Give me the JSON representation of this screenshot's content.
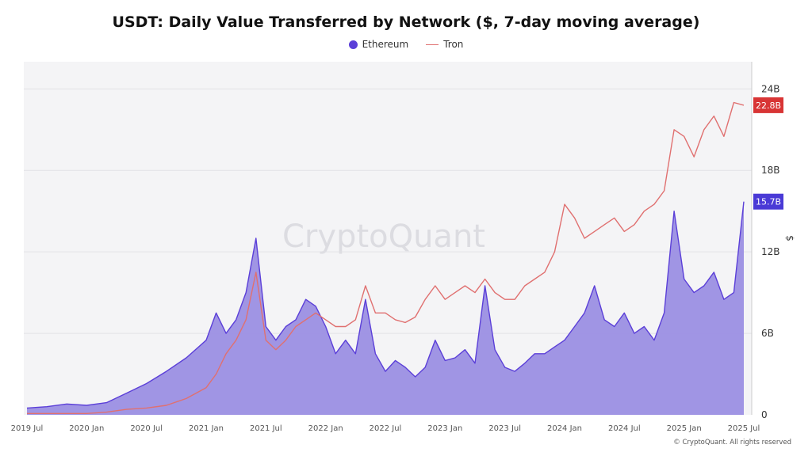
{
  "chart_data": {
    "type": "area",
    "title": "USDT: Daily Value Transferred by Network ($, 7-day moving average)",
    "xlabel": "",
    "ylabel": "$",
    "ylim": [
      0,
      26
    ],
    "y_unit": "B",
    "y_ticks": [
      "0",
      "6B",
      "12B",
      "18B",
      "24B"
    ],
    "y_tick_values": [
      0,
      6,
      12,
      18,
      24
    ],
    "x_tick_labels": [
      "2019 Jul",
      "2020 Jan",
      "2020 Jul",
      "2021 Jan",
      "2021 Jul",
      "2022 Jan",
      "2022 Jul",
      "2023 Jan",
      "2023 Jul",
      "2024 Jan",
      "2024 Jul",
      "2025 Jan",
      "2025 Jul"
    ],
    "x": [
      "2019-07",
      "2019-09",
      "2019-11",
      "2020-01",
      "2020-03",
      "2020-05",
      "2020-07",
      "2020-09",
      "2020-11",
      "2021-01",
      "2021-02",
      "2021-03",
      "2021-04",
      "2021-05",
      "2021-06",
      "2021-07",
      "2021-08",
      "2021-09",
      "2021-10",
      "2021-11",
      "2021-12",
      "2022-01",
      "2022-02",
      "2022-03",
      "2022-04",
      "2022-05",
      "2022-06",
      "2022-07",
      "2022-08",
      "2022-09",
      "2022-10",
      "2022-11",
      "2022-12",
      "2023-01",
      "2023-02",
      "2023-03",
      "2023-04",
      "2023-05",
      "2023-06",
      "2023-07",
      "2023-08",
      "2023-09",
      "2023-10",
      "2023-11",
      "2023-12",
      "2024-01",
      "2024-02",
      "2024-03",
      "2024-04",
      "2024-05",
      "2024-06",
      "2024-07",
      "2024-08",
      "2024-09",
      "2024-10",
      "2024-11",
      "2024-12",
      "2025-01",
      "2025-02",
      "2025-03",
      "2025-04",
      "2025-05",
      "2025-06",
      "2025-07"
    ],
    "series": [
      {
        "name": "Ethereum",
        "color": "#5b3fd8",
        "fill": "#9b8fe3",
        "last_value_label": "15.7B",
        "values": [
          0.5,
          0.6,
          0.8,
          0.7,
          0.9,
          1.6,
          2.3,
          3.2,
          4.2,
          5.5,
          7.5,
          6.0,
          7.0,
          9.0,
          13.0,
          6.5,
          5.5,
          6.5,
          7.0,
          8.5,
          8.0,
          6.5,
          4.5,
          5.5,
          4.5,
          8.5,
          4.5,
          3.2,
          4.0,
          3.5,
          2.8,
          3.5,
          5.5,
          4.0,
          4.2,
          4.8,
          3.8,
          9.5,
          4.8,
          3.5,
          3.2,
          3.8,
          4.5,
          4.5,
          5.0,
          5.5,
          6.5,
          7.5,
          9.5,
          7.0,
          6.5,
          7.5,
          6.0,
          6.5,
          5.5,
          7.5,
          15.0,
          10.0,
          9.0,
          9.5,
          10.5,
          8.5,
          9.0,
          15.7
        ]
      },
      {
        "name": "Tron",
        "color": "#e07070",
        "last_value_label": "22.8B",
        "values": [
          0.1,
          0.1,
          0.1,
          0.1,
          0.2,
          0.4,
          0.5,
          0.7,
          1.2,
          2.0,
          3.0,
          4.5,
          5.5,
          7.0,
          10.5,
          5.5,
          4.8,
          5.5,
          6.5,
          7.0,
          7.5,
          7.0,
          6.5,
          6.5,
          7.0,
          9.5,
          7.5,
          7.5,
          7.0,
          6.8,
          7.2,
          8.5,
          9.5,
          8.5,
          9.0,
          9.5,
          9.0,
          10.0,
          9.0,
          8.5,
          8.5,
          9.5,
          10.0,
          10.5,
          12.0,
          15.5,
          14.5,
          13.0,
          13.5,
          14.0,
          14.5,
          13.5,
          14.0,
          15.0,
          15.5,
          16.5,
          21.0,
          20.5,
          19.0,
          21.0,
          22.0,
          20.5,
          23.0,
          22.8
        ]
      }
    ],
    "legend": "top-center",
    "grid": true,
    "watermark": "CryptoQuant"
  },
  "footer": {
    "copyright": "© CryptoQuant. All rights reserved"
  }
}
